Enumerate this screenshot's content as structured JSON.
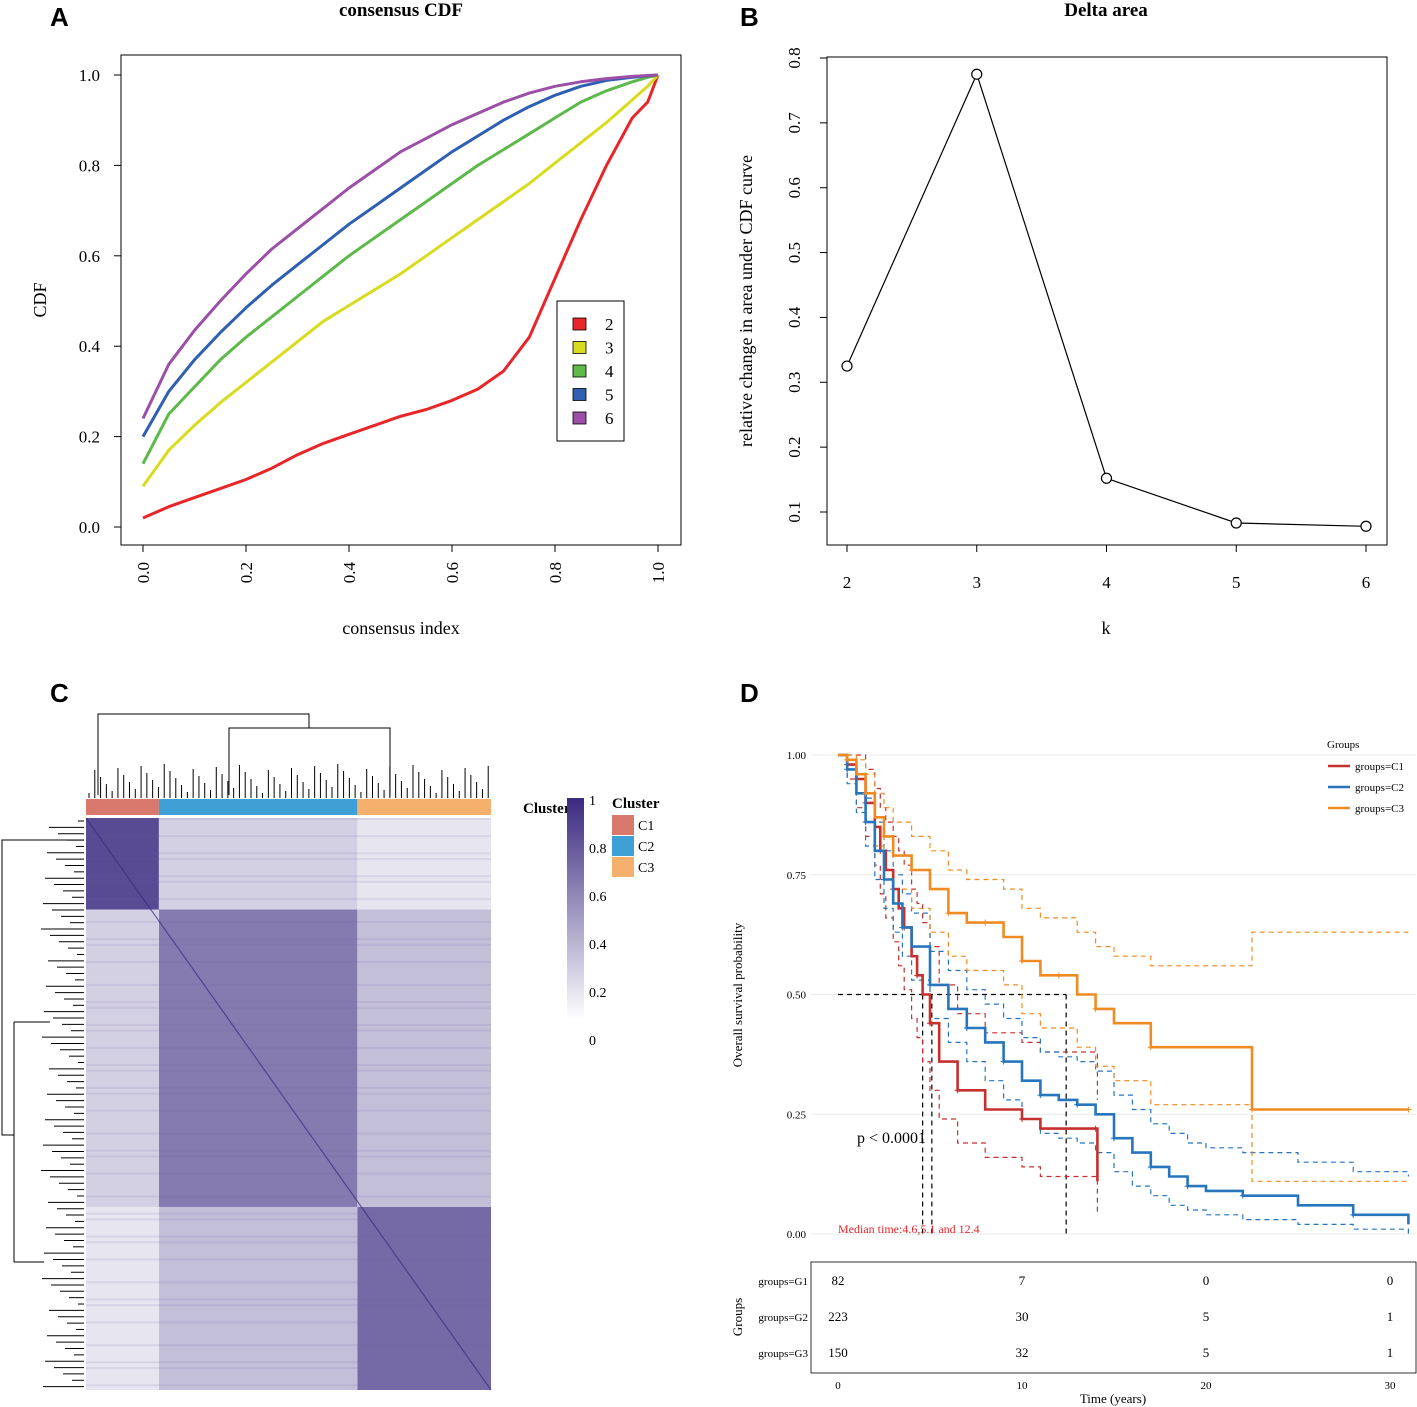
{
  "panels": {
    "A": {
      "label": "A",
      "chart_data": {
        "type": "line",
        "title": "consensus CDF",
        "xlabel": "consensus index",
        "ylabel": "CDF",
        "xlim": [
          0,
          1
        ],
        "ylim": [
          0,
          1
        ],
        "xticks": [
          "0.0",
          "0.2",
          "0.4",
          "0.6",
          "0.8",
          "1.0"
        ],
        "yticks": [
          "0.0",
          "0.2",
          "0.4",
          "0.6",
          "0.8",
          "1.0"
        ],
        "legend_position": "right",
        "x": [
          0.0,
          0.05,
          0.1,
          0.15,
          0.2,
          0.25,
          0.3,
          0.35,
          0.4,
          0.45,
          0.5,
          0.55,
          0.6,
          0.65,
          0.7,
          0.75,
          0.8,
          0.85,
          0.9,
          0.95,
          0.98,
          1.0
        ],
        "series": [
          {
            "name": "2",
            "color": "#e8262a",
            "values": [
              0.02,
              0.045,
              0.065,
              0.085,
              0.105,
              0.13,
              0.16,
              0.185,
              0.205,
              0.225,
              0.245,
              0.26,
              0.28,
              0.305,
              0.345,
              0.42,
              0.55,
              0.68,
              0.8,
              0.905,
              0.94,
              1.0
            ]
          },
          {
            "name": "3",
            "color": "#d9dc1e",
            "values": [
              0.09,
              0.17,
              0.225,
              0.275,
              0.32,
              0.365,
              0.41,
              0.455,
              0.49,
              0.525,
              0.56,
              0.6,
              0.64,
              0.68,
              0.72,
              0.76,
              0.805,
              0.85,
              0.895,
              0.945,
              0.975,
              1.0
            ]
          },
          {
            "name": "4",
            "color": "#5cb94a",
            "values": [
              0.14,
              0.25,
              0.31,
              0.37,
              0.42,
              0.465,
              0.51,
              0.555,
              0.6,
              0.64,
              0.68,
              0.72,
              0.76,
              0.8,
              0.835,
              0.87,
              0.905,
              0.94,
              0.965,
              0.985,
              0.995,
              1.0
            ]
          },
          {
            "name": "5",
            "color": "#2f5fb0",
            "values": [
              0.2,
              0.3,
              0.37,
              0.43,
              0.485,
              0.535,
              0.58,
              0.625,
              0.67,
              0.71,
              0.75,
              0.79,
              0.83,
              0.865,
              0.9,
              0.93,
              0.955,
              0.975,
              0.988,
              0.995,
              0.998,
              1.0
            ]
          },
          {
            "name": "6",
            "color": "#9b4fa7",
            "values": [
              0.24,
              0.36,
              0.435,
              0.5,
              0.56,
              0.615,
              0.66,
              0.705,
              0.75,
              0.79,
              0.83,
              0.86,
              0.89,
              0.915,
              0.94,
              0.96,
              0.975,
              0.985,
              0.992,
              0.997,
              0.999,
              1.0
            ]
          }
        ]
      }
    },
    "B": {
      "label": "B",
      "chart_data": {
        "type": "line",
        "title": "Delta area",
        "xlabel": "k",
        "ylabel": "relative change in area under CDF curve",
        "xlim": [
          2,
          6
        ],
        "ylim": [
          0.05,
          0.8
        ],
        "categories": [
          "2",
          "3",
          "4",
          "5",
          "6"
        ],
        "values": [
          0.325,
          0.775,
          0.152,
          0.083,
          0.078
        ],
        "yticks": [
          "0.1",
          "0.2",
          "0.3",
          "0.4",
          "0.5",
          "0.6",
          "0.7",
          "0.8"
        ]
      }
    },
    "C": {
      "label": "C",
      "chart_data": {
        "type": "heatmap",
        "cluster_bar_label": "Cluster",
        "legend_title": "Cluster",
        "clusters": [
          {
            "name": "C1",
            "color": "#d9786d",
            "fraction": 0.18
          },
          {
            "name": "C2",
            "color": "#3fa0d6",
            "fraction": 0.49
          },
          {
            "name": "C3",
            "color": "#f4b06c",
            "fraction": 0.33
          }
        ],
        "colorbar_ticks": [
          "1",
          "0.8",
          "0.6",
          "0.4",
          "0.2",
          "0"
        ],
        "colorbar_high": "#3b2a80",
        "colorbar_low": "#ffffff"
      }
    },
    "D": {
      "label": "D",
      "chart_data": {
        "type": "line",
        "xlabel": "Time (years)",
        "ylabel": "Overall survival probability",
        "xlim": [
          0,
          31
        ],
        "ylim": [
          0,
          1
        ],
        "xticks": [
          "0",
          "10",
          "20",
          "30"
        ],
        "yticks": [
          "0.00",
          "0.25",
          "0.50",
          "0.75",
          "1.00"
        ],
        "legend_title": "Groups",
        "pvalue": "p < 0.0001",
        "median_text": "Median time:4.6,5.1 and 12.4",
        "medians": [
          4.6,
          5.1,
          12.4
        ],
        "series": [
          {
            "name": "groups=C1",
            "color": "#c6302d",
            "x": [
              0,
              0.5,
              1,
              1.5,
              2,
              2.3,
              2.6,
              3,
              3.3,
              3.6,
              4,
              4.3,
              4.6,
              5,
              5.5,
              6.5,
              8,
              10,
              11,
              14,
              14.1
            ],
            "values": [
              1.0,
              0.98,
              0.95,
              0.9,
              0.85,
              0.8,
              0.76,
              0.72,
              0.68,
              0.64,
              0.58,
              0.54,
              0.5,
              0.44,
              0.36,
              0.3,
              0.26,
              0.24,
              0.22,
              0.22,
              0.11
            ],
            "upper_values": [
              1.0,
              1.0,
              1.0,
              0.97,
              0.93,
              0.89,
              0.86,
              0.83,
              0.8,
              0.77,
              0.72,
              0.69,
              0.65,
              0.6,
              0.52,
              0.46,
              0.42,
              0.4,
              0.38,
              0.38,
              0.28
            ],
            "lower_values": [
              1.0,
              0.95,
              0.89,
              0.83,
              0.77,
              0.71,
              0.66,
              0.61,
              0.56,
              0.51,
              0.45,
              0.41,
              0.36,
              0.3,
              0.24,
              0.19,
              0.16,
              0.14,
              0.12,
              0.12,
              0.04
            ]
          },
          {
            "name": "groups=C2",
            "color": "#2776bd",
            "x": [
              0,
              0.5,
              1,
              1.5,
              2,
              2.5,
              3,
              3.5,
              4,
              5,
              6,
              7,
              8,
              9,
              10,
              11,
              12,
              13,
              14,
              15,
              16,
              17,
              18,
              19,
              20,
              22,
              25,
              28,
              31
            ],
            "values": [
              1.0,
              0.97,
              0.92,
              0.86,
              0.8,
              0.74,
              0.69,
              0.64,
              0.6,
              0.52,
              0.47,
              0.43,
              0.4,
              0.36,
              0.32,
              0.29,
              0.28,
              0.27,
              0.25,
              0.2,
              0.17,
              0.14,
              0.12,
              0.1,
              0.09,
              0.08,
              0.06,
              0.04,
              0.02
            ],
            "upper_values": [
              1.0,
              0.99,
              0.96,
              0.91,
              0.86,
              0.8,
              0.75,
              0.71,
              0.67,
              0.59,
              0.55,
              0.51,
              0.48,
              0.45,
              0.41,
              0.38,
              0.37,
              0.36,
              0.34,
              0.29,
              0.26,
              0.23,
              0.21,
              0.19,
              0.18,
              0.17,
              0.15,
              0.13,
              0.12
            ],
            "lower_values": [
              1.0,
              0.94,
              0.88,
              0.81,
              0.74,
              0.68,
              0.63,
              0.58,
              0.53,
              0.45,
              0.4,
              0.36,
              0.32,
              0.28,
              0.24,
              0.21,
              0.2,
              0.19,
              0.17,
              0.13,
              0.1,
              0.08,
              0.06,
              0.05,
              0.04,
              0.03,
              0.02,
              0.01,
              0.0
            ]
          },
          {
            "name": "groups=C3",
            "color": "#f08b23",
            "x": [
              0,
              0.5,
              1,
              1.5,
              2,
              2.5,
              3,
              4,
              5,
              6,
              7,
              8,
              9,
              10,
              11,
              12,
              13,
              14,
              15,
              17,
              20,
              22.5,
              25,
              31
            ],
            "values": [
              1.0,
              0.99,
              0.96,
              0.92,
              0.87,
              0.83,
              0.79,
              0.76,
              0.72,
              0.67,
              0.65,
              0.65,
              0.62,
              0.57,
              0.54,
              0.54,
              0.5,
              0.47,
              0.44,
              0.39,
              0.39,
              0.26,
              0.26,
              0.26
            ],
            "upper_values": [
              1.0,
              1.0,
              0.99,
              0.96,
              0.92,
              0.89,
              0.86,
              0.83,
              0.8,
              0.76,
              0.74,
              0.74,
              0.72,
              0.68,
              0.66,
              0.66,
              0.63,
              0.6,
              0.58,
              0.56,
              0.56,
              0.63,
              0.63,
              0.63
            ],
            "lower_values": [
              1.0,
              0.97,
              0.92,
              0.86,
              0.81,
              0.76,
              0.72,
              0.68,
              0.63,
              0.58,
              0.55,
              0.55,
              0.52,
              0.46,
              0.43,
              0.43,
              0.39,
              0.35,
              0.32,
              0.27,
              0.27,
              0.11,
              0.11,
              0.11
            ]
          }
        ],
        "risk_table": {
          "ylabel": "Groups",
          "times": [
            0,
            10,
            20,
            30
          ],
          "rows": [
            {
              "name": "groups=G1",
              "counts": [
                "82",
                "7",
                "0",
                "0"
              ]
            },
            {
              "name": "groups=G2",
              "counts": [
                "223",
                "30",
                "5",
                "1"
              ]
            },
            {
              "name": "groups=G3",
              "counts": [
                "150",
                "32",
                "5",
                "1"
              ]
            }
          ]
        }
      }
    }
  }
}
